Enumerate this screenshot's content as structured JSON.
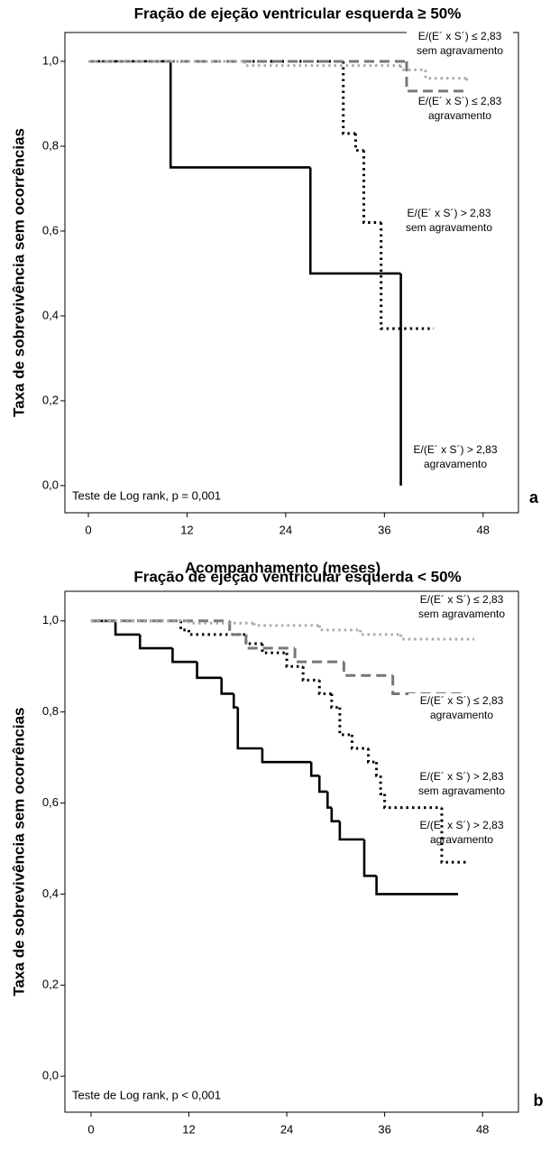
{
  "chart_data": [
    {
      "type": "step",
      "title": "Fração de ejeção ventricular esquerda ≥ 50%",
      "y_label": "Taxa de sobrevivência sem ocorrências",
      "x_label": "Acompanhamento (meses)",
      "annotation": "Teste de Log rank, p = 0,001",
      "panel_label": "a",
      "xlim": [
        -2.85,
        52.3
      ],
      "xticks": [
        0,
        12,
        24,
        36,
        48
      ],
      "ylim": [
        -0.064,
        1.068
      ],
      "yticks": [
        {
          "value": 0,
          "label": "0,0"
        },
        {
          "value": 0.2,
          "label": "0,2"
        },
        {
          "value": 0.4,
          "label": "0,4"
        },
        {
          "value": 0.6,
          "label": "0,6"
        },
        {
          "value": 0.8,
          "label": "0,8"
        },
        {
          "value": 1,
          "label": "1,0"
        }
      ],
      "series": [
        {
          "name": "E/(E´ x S´) > 2,83 agravamento",
          "color": "#000000",
          "style": "solid",
          "x": [
            0,
            10,
            27,
            38
          ],
          "values": [
            1,
            0.75,
            0.5,
            0
          ]
        },
        {
          "name": "E/(E´ x S´) > 2,83 sem agravamento",
          "color": "#000000",
          "style": "dotted",
          "x": [
            0,
            31,
            32.5,
            33.5,
            35.6,
            42
          ],
          "values": [
            1,
            0.83,
            0.79,
            0.62,
            0.37,
            0.37
          ]
        },
        {
          "name": "E/(E´ x S´) ≤ 2,83 agravamento",
          "color": "#777777",
          "style": "dashed",
          "x": [
            0,
            38.7,
            46
          ],
          "values": [
            1,
            0.93,
            0.93
          ]
        },
        {
          "name": "E/(E´ x S´) ≤ 2,83 sem agravamento",
          "color": "#aaaaaa",
          "style": "dotted",
          "x": [
            0,
            19,
            38,
            41,
            46
          ],
          "values": [
            1,
            0.99,
            0.98,
            0.96,
            0.95
          ]
        }
      ]
    },
    {
      "type": "step",
      "title": "Fração de ejeção ventricular esquerda < 50%",
      "y_label": "Taxa de sobrevivência sem ocorrências",
      "x_label": "Acompanhamento (meses)",
      "annotation": "Teste de Log rank, p < 0,001",
      "panel_label": "b",
      "xlim": [
        -3.2,
        52.4
      ],
      "xticks": [
        0,
        12,
        24,
        36,
        48
      ],
      "ylim": [
        -0.079,
        1.065
      ],
      "yticks": [
        {
          "value": 0,
          "label": "0,0"
        },
        {
          "value": 0.2,
          "label": "0,2"
        },
        {
          "value": 0.4,
          "label": "0,4"
        },
        {
          "value": 0.6,
          "label": "0,6"
        },
        {
          "value": 0.8,
          "label": "0,8"
        },
        {
          "value": 1,
          "label": "1,0"
        }
      ],
      "series": [
        {
          "name": "E/(E´ x S´) > 2,83 agravamento",
          "color": "#000000",
          "style": "solid",
          "x": [
            0,
            3,
            6,
            10,
            13,
            16,
            17.5,
            18,
            21,
            27,
            28,
            29,
            29.5,
            30.5,
            33.5,
            35,
            45
          ],
          "values": [
            1,
            0.97,
            0.94,
            0.91,
            0.875,
            0.84,
            0.81,
            0.72,
            0.69,
            0.66,
            0.625,
            0.59,
            0.56,
            0.52,
            0.44,
            0.4,
            0.4
          ]
        },
        {
          "name": "E/(E´ x S´) > 2,83 sem agravamento",
          "color": "#000000",
          "style": "dotted",
          "x": [
            0,
            11,
            12,
            19,
            21,
            24,
            26,
            28,
            29.5,
            30.5,
            32,
            34,
            35,
            35.5,
            36,
            43,
            46
          ],
          "values": [
            1,
            0.98,
            0.97,
            0.95,
            0.93,
            0.9,
            0.87,
            0.84,
            0.81,
            0.75,
            0.72,
            0.69,
            0.66,
            0.62,
            0.59,
            0.47,
            0.47
          ]
        },
        {
          "name": "E/(E´ x S´) ≤ 2,83 agravamento",
          "color": "#777777",
          "style": "dashed",
          "x": [
            0,
            17,
            19,
            25,
            31,
            37,
            46
          ],
          "values": [
            1,
            0.97,
            0.94,
            0.91,
            0.88,
            0.84,
            0.84
          ]
        },
        {
          "name": "E/(E´ x S´) ≤ 2,83 sem agravamento",
          "color": "#aaaaaa",
          "style": "dotted",
          "x": [
            0,
            12,
            20,
            28,
            33,
            38,
            47
          ],
          "values": [
            1,
            0.995,
            0.99,
            0.98,
            0.97,
            0.96,
            0.96
          ]
        }
      ]
    }
  ]
}
